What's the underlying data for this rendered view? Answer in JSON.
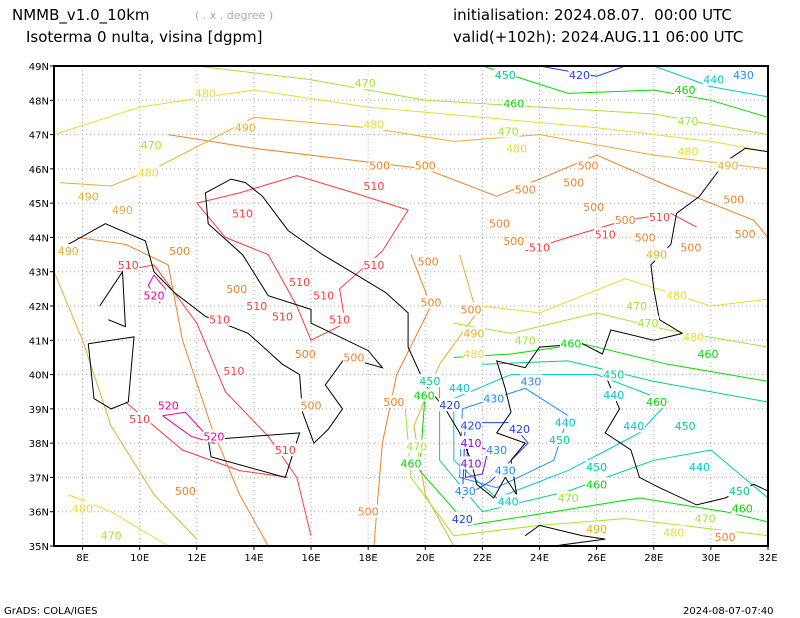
{
  "header": {
    "model": "NMMB_v1.0_10km",
    "units_hint": "( . x . degree )",
    "field": "Isoterma 0 nulta, visina [dgpm]",
    "init": "initialisation: 2024.08.07.  00:00 UTC",
    "valid": "valid(+102h): 2024.AUG.11 06:00 UTC"
  },
  "footer": {
    "left": "GrADS: COLA/IGES",
    "right": "2024-08-07-07:40"
  },
  "map": {
    "lon_range": [
      7,
      32
    ],
    "lat_range": [
      35,
      49
    ],
    "lon_ticks": [
      "8E",
      "10E",
      "12E",
      "14E",
      "16E",
      "18E",
      "20E",
      "22E",
      "24E",
      "26E",
      "28E",
      "30E",
      "32E"
    ],
    "lat_ticks": [
      "35N",
      "36N",
      "37N",
      "38N",
      "39N",
      "40N",
      "41N",
      "42N",
      "43N",
      "44N",
      "45N",
      "46N",
      "47N",
      "48N",
      "49N"
    ],
    "level_colors": {
      "410": "#8a00e0",
      "420": "#1e3cff",
      "430": "#1e8cff",
      "440": "#00c8c8",
      "450": "#00d28c",
      "460": "#00dc00",
      "470": "#a0e632",
      "480": "#e6dc32",
      "490": "#e6af2d",
      "500": "#f08228",
      "510": "#fa3c3c",
      "520": "#f000a0"
    },
    "contour_labels": [
      {
        "v": "470",
        "lon": 17.9,
        "lat": 48.5
      },
      {
        "v": "480",
        "lon": 12.3,
        "lat": 48.2
      },
      {
        "v": "490",
        "lon": 13.7,
        "lat": 47.2
      },
      {
        "v": "480",
        "lon": 18.2,
        "lat": 47.3
      },
      {
        "v": "470",
        "lon": 10.4,
        "lat": 46.7
      },
      {
        "v": "480",
        "lon": 10.3,
        "lat": 46.3
      },
      {
        "v": "500",
        "lon": 18.4,
        "lat": 46.1
      },
      {
        "v": "500",
        "lon": 20.0,
        "lat": 46.1
      },
      {
        "v": "510",
        "lon": 18.2,
        "lat": 45.5
      },
      {
        "v": "490",
        "lon": 8.2,
        "lat": 45.2
      },
      {
        "v": "490",
        "lon": 9.4,
        "lat": 44.8
      },
      {
        "v": "510",
        "lon": 13.6,
        "lat": 44.7
      },
      {
        "v": "500",
        "lon": 11.4,
        "lat": 43.6
      },
      {
        "v": "490",
        "lon": 7.5,
        "lat": 43.6
      },
      {
        "v": "510",
        "lon": 9.6,
        "lat": 43.2
      },
      {
        "v": "520",
        "lon": 10.5,
        "lat": 42.3
      },
      {
        "v": "510",
        "lon": 12.8,
        "lat": 41.6
      },
      {
        "v": "510",
        "lon": 14.1,
        "lat": 42.0
      },
      {
        "v": "510",
        "lon": 15.0,
        "lat": 41.7
      },
      {
        "v": "510",
        "lon": 15.6,
        "lat": 42.7
      },
      {
        "v": "510",
        "lon": 15.6,
        "lat": 42.3
      },
      {
        "v": "500",
        "lon": 13.4,
        "lat": 42.5
      },
      {
        "v": "500",
        "lon": 15.8,
        "lat": 40.6
      },
      {
        "v": "510",
        "lon": 17.0,
        "lat": 41.6
      },
      {
        "v": "500",
        "lon": 17.5,
        "lat": 40.5
      },
      {
        "v": "510",
        "lon": 13.3,
        "lat": 40.1
      },
      {
        "v": "510",
        "lon": 10.0,
        "lat": 38.7
      },
      {
        "v": "520",
        "lon": 11.0,
        "lat": 39.1
      },
      {
        "v": "520",
        "lon": 12.6,
        "lat": 38.2
      },
      {
        "v": "510",
        "lon": 15.1,
        "lat": 37.8
      },
      {
        "v": "500",
        "lon": 16.0,
        "lat": 39.1
      },
      {
        "v": "500",
        "lon": 18.9,
        "lat": 39.2
      },
      {
        "v": "500",
        "lon": 11.6,
        "lat": 36.6
      },
      {
        "v": "500",
        "lon": 18.0,
        "lat": 36.0
      },
      {
        "v": "480",
        "lon": 8.0,
        "lat": 36.1
      },
      {
        "v": "470",
        "lon": 9.0,
        "lat": 35.3
      },
      {
        "v": "500",
        "lon": 20.1,
        "lat": 43.3
      },
      {
        "v": "510",
        "lon": 18.2,
        "lat": 43.2
      },
      {
        "v": "500",
        "lon": 20.2,
        "lat": 42.1
      },
      {
        "v": "500",
        "lon": 21.6,
        "lat": 41.9
      },
      {
        "v": "490",
        "lon": 21.7,
        "lat": 41.6
      },
      {
        "v": "480",
        "lon": 21.7,
        "lat": 40.6
      },
      {
        "v": "470",
        "lon": 23.5,
        "lat": 41.0
      },
      {
        "v": "460",
        "lon": 25.1,
        "lat": 40.9
      },
      {
        "v": "500",
        "lon": 23.5,
        "lat": 45.4
      },
      {
        "v": "500",
        "lon": 25.2,
        "lat": 45.6
      },
      {
        "v": "500",
        "lon": 25.7,
        "lat": 46.1
      },
      {
        "v": "500",
        "lon": 25.9,
        "lat": 45.3
      },
      {
        "v": "500",
        "lon": 22.6,
        "lat": 44.4
      },
      {
        "v": "500",
        "lon": 23.1,
        "lat": 43.9
      },
      {
        "v": "510",
        "lon": 24.0,
        "lat": 43.7
      },
      {
        "v": "510",
        "lon": 26.3,
        "lat": 44.5
      },
      {
        "v": "500",
        "lon": 27.0,
        "lat": 44.1
      },
      {
        "v": "500",
        "lon": 27.7,
        "lat": 44.0
      },
      {
        "v": "510",
        "lon": 28.2,
        "lat": 44.6
      },
      {
        "v": "500",
        "lon": 29.3,
        "lat": 43.7
      },
      {
        "v": "500",
        "lon": 30.8,
        "lat": 45.1
      },
      {
        "v": "500",
        "lon": 31.2,
        "lat": 44.1
      },
      {
        "v": "490",
        "lon": 28.1,
        "lat": 43.5
      },
      {
        "v": "480",
        "lon": 28.8,
        "lat": 42.3
      },
      {
        "v": "470",
        "lon": 27.4,
        "lat": 42.0
      },
      {
        "v": "470",
        "lon": 27.8,
        "lat": 41.5
      },
      {
        "v": "480",
        "lon": 29.4,
        "lat": 41.1
      },
      {
        "v": "460",
        "lon": 29.9,
        "lat": 40.6
      },
      {
        "v": "450",
        "lon": 26.6,
        "lat": 40.0
      },
      {
        "v": "440",
        "lon": 26.6,
        "lat": 39.4
      },
      {
        "v": "460",
        "lon": 28.1,
        "lat": 39.2
      },
      {
        "v": "450",
        "lon": 29.1,
        "lat": 38.5
      },
      {
        "v": "440",
        "lon": 29.6,
        "lat": 37.3
      },
      {
        "v": "450",
        "lon": 31.0,
        "lat": 36.6
      },
      {
        "v": "460",
        "lon": 31.1,
        "lat": 36.1
      },
      {
        "v": "470",
        "lon": 29.8,
        "lat": 35.8
      },
      {
        "v": "480",
        "lon": 28.7,
        "lat": 35.4
      },
      {
        "v": "500",
        "lon": 30.5,
        "lat": 35.1
      },
      {
        "v": "490",
        "lon": 26.0,
        "lat": 35.5
      },
      {
        "v": "470",
        "lon": 25.0,
        "lat": 36.4
      },
      {
        "v": "460",
        "lon": 26.0,
        "lat": 36.8
      },
      {
        "v": "450",
        "lon": 26.0,
        "lat": 37.3
      },
      {
        "v": "440",
        "lon": 22.9,
        "lat": 36.3
      },
      {
        "v": "430",
        "lon": 21.4,
        "lat": 36.6
      },
      {
        "v": "420",
        "lon": 21.3,
        "lat": 36.2
      },
      {
        "v": "410",
        "lon": 21.6,
        "lat": 37.0
      },
      {
        "v": "410",
        "lon": 21.6,
        "lat": 37.6
      },
      {
        "v": "420",
        "lon": 21.6,
        "lat": 38.1
      },
      {
        "v": "430",
        "lon": 22.5,
        "lat": 37.8
      },
      {
        "v": "420",
        "lon": 23.3,
        "lat": 38.0
      },
      {
        "v": "430",
        "lon": 22.8,
        "lat": 37.2
      },
      {
        "v": "440",
        "lon": 24.9,
        "lat": 38.6
      },
      {
        "v": "430",
        "lon": 23.7,
        "lat": 39.8
      },
      {
        "v": "430",
        "lon": 22.4,
        "lat": 39.3
      },
      {
        "v": "420",
        "lon": 21.7,
        "lat": 38.7
      },
      {
        "v": "440",
        "lon": 21.2,
        "lat": 39.2
      },
      {
        "v": "450",
        "lon": 21.0,
        "lat": 39.4
      },
      {
        "v": "460",
        "lon": 20.8,
        "lat": 39.8
      },
      {
        "v": "470",
        "lon": 19.7,
        "lat": 37.9
      },
      {
        "v": "460",
        "lon": 19.5,
        "lat": 37.4
      },
      {
        "v": "450",
        "lon": 24.7,
        "lat": 38.5
      },
      {
        "v": "440",
        "lon": 27.3,
        "lat": 38.5
      },
      {
        "v": "420",
        "lon": 25.4,
        "lat": 48.8
      },
      {
        "v": "450",
        "lon": 22.8,
        "lat": 48.8
      },
      {
        "v": "460",
        "lon": 23.1,
        "lat": 47.9
      },
      {
        "v": "470",
        "lon": 22.9,
        "lat": 47.5
      },
      {
        "v": "480",
        "lon": 23.2,
        "lat": 47.0
      },
      {
        "v": "460",
        "lon": 29.1,
        "lat": 48.3
      },
      {
        "v": "440",
        "lon": 30.1,
        "lat": 48.6
      },
      {
        "v": "470",
        "lon": 29.2,
        "lat": 47.4
      },
      {
        "v": "480",
        "lon": 29.2,
        "lat": 46.5
      },
      {
        "v": "490",
        "lon": 30.6,
        "lat": 46.1
      },
      {
        "v": "430",
        "lon": 30.3,
        "lat": 48.8
      }
    ]
  }
}
